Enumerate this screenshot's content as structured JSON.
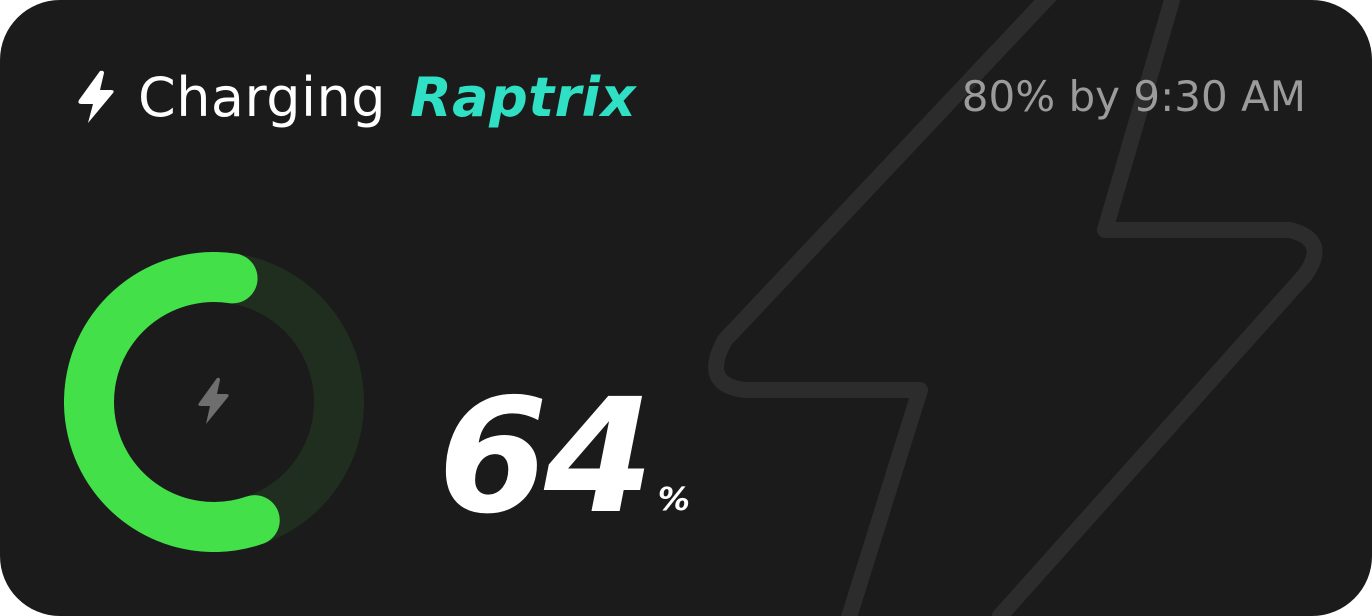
{
  "header": {
    "icon": "lightning-bolt-icon",
    "title": "Charging",
    "device_name": "Raptrix"
  },
  "eta": {
    "text": "80% by 9:30 AM"
  },
  "battery": {
    "level_percent": 64,
    "value": "64",
    "unit": "%",
    "center_icon": "lightning-bolt-icon"
  },
  "background_icon": "lightning-bolt-outline-icon",
  "colors": {
    "background": "#1b1b1b",
    "accent": "#2fe0c4",
    "progress": "#44e04a",
    "track": "#202e20",
    "muted_text": "#9b9b9b"
  }
}
